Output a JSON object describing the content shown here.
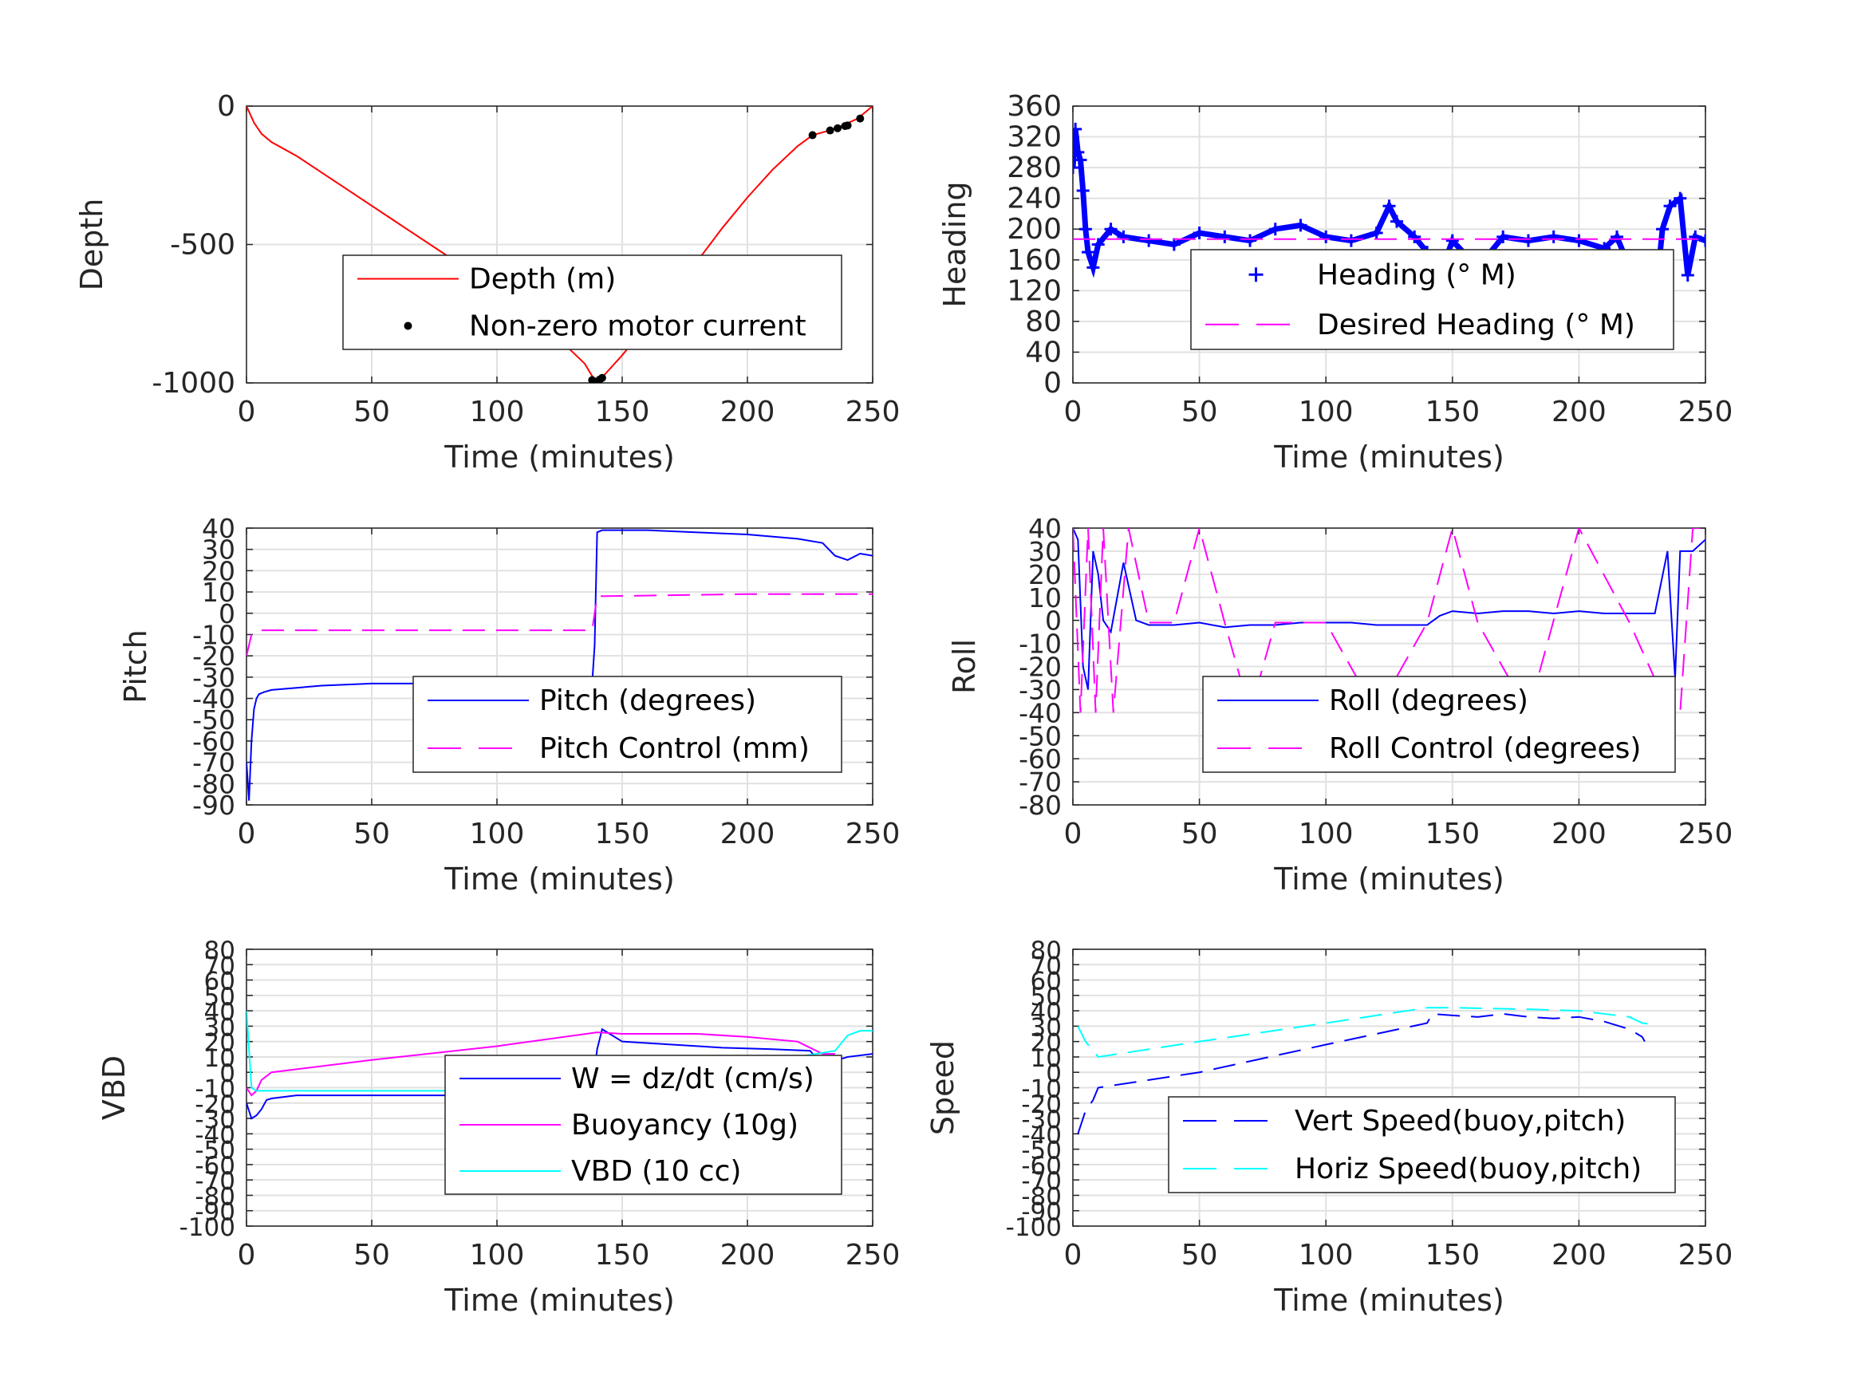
{
  "chart_data": [
    {
      "type": "line",
      "xlabel": "Time (minutes)",
      "ylabel": "Depth",
      "xlim": [
        0,
        250
      ],
      "ylim": [
        -1000,
        0
      ],
      "xticks": [
        "0",
        "50",
        "100",
        "150",
        "200",
        "250"
      ],
      "yticks": [
        "-1000",
        "-500",
        "0"
      ],
      "grid": true,
      "legend_position": "center-right",
      "series": [
        {
          "name": "Depth (m)",
          "color": "#ff0000",
          "style": "solid",
          "x": [
            0,
            3,
            6,
            10,
            20,
            40,
            60,
            80,
            100,
            120,
            135,
            139,
            142,
            150,
            160,
            175,
            190,
            200,
            210,
            220,
            226,
            232,
            238,
            244,
            250
          ],
          "y": [
            0,
            -60,
            -100,
            -130,
            -180,
            -300,
            -420,
            -540,
            -660,
            -800,
            -930,
            -990,
            -980,
            -900,
            -790,
            -620,
            -440,
            -330,
            -230,
            -145,
            -105,
            -90,
            -70,
            -45,
            0
          ]
        },
        {
          "name": "Non-zero motor current",
          "color": "#000000",
          "style": "marker",
          "x": [
            138,
            140,
            141,
            142,
            226,
            233,
            236,
            239,
            240,
            245
          ],
          "y": [
            -990,
            -995,
            -988,
            -982,
            -105,
            -88,
            -80,
            -72,
            -70,
            -45
          ]
        }
      ]
    },
    {
      "type": "line",
      "xlabel": "Time (minutes)",
      "ylabel": "Heading",
      "xlim": [
        0,
        250
      ],
      "ylim": [
        0,
        360
      ],
      "xticks": [
        "0",
        "50",
        "100",
        "150",
        "200",
        "250"
      ],
      "yticks": [
        "0",
        "40",
        "80",
        "120",
        "160",
        "200",
        "240",
        "280",
        "320",
        "360"
      ],
      "grid": true,
      "legend_position": "center-right",
      "series": [
        {
          "name": "Heading (° M)",
          "color": "#0000ff",
          "style": "marker",
          "x": [
            0,
            1,
            2,
            3,
            4,
            5,
            6,
            8,
            10,
            15,
            20,
            30,
            40,
            50,
            60,
            70,
            80,
            90,
            100,
            110,
            120,
            125,
            128,
            135,
            140,
            145,
            150,
            160,
            170,
            180,
            190,
            200,
            210,
            215,
            220,
            225,
            228,
            230,
            233,
            236,
            240,
            243,
            246,
            250
          ],
          "y": [
            280,
            330,
            300,
            290,
            250,
            200,
            170,
            150,
            180,
            200,
            190,
            185,
            180,
            195,
            190,
            185,
            200,
            205,
            190,
            185,
            195,
            230,
            210,
            190,
            170,
            140,
            185,
            150,
            190,
            185,
            190,
            185,
            175,
            190,
            150,
            120,
            60,
            100,
            200,
            230,
            240,
            140,
            190,
            185
          ]
        },
        {
          "name": "Desired Heading (° M)",
          "color": "#ff00ff",
          "style": "dashed",
          "x": [
            0,
            250
          ],
          "y": [
            187,
            187
          ]
        }
      ]
    },
    {
      "type": "line",
      "xlabel": "Time (minutes)",
      "ylabel": "Pitch",
      "xlim": [
        0,
        250
      ],
      "ylim": [
        -90,
        40
      ],
      "xticks": [
        "0",
        "50",
        "100",
        "150",
        "200",
        "250"
      ],
      "yticks": [
        "-90",
        "-80",
        "-70",
        "-60",
        "-50",
        "-40",
        "-30",
        "-20",
        "-10",
        "0",
        "10",
        "20",
        "30",
        "40"
      ],
      "grid": true,
      "legend_position": "center-right",
      "series": [
        {
          "name": "Pitch (degrees)",
          "color": "#0000ff",
          "style": "solid",
          "x": [
            0,
            1,
            2,
            3,
            4,
            5,
            7,
            10,
            20,
            30,
            50,
            70,
            100,
            120,
            138,
            139,
            140,
            142,
            160,
            180,
            200,
            220,
            230,
            235,
            240,
            245,
            250
          ],
          "y": [
            -70,
            -88,
            -60,
            -45,
            -40,
            -38,
            -37,
            -36,
            -35,
            -34,
            -33,
            -33,
            -33,
            -33,
            -33,
            -15,
            38,
            39,
            39,
            38,
            37,
            35,
            33,
            27,
            25,
            28,
            27
          ]
        },
        {
          "name": "Pitch Control (mm)",
          "color": "#ff00ff",
          "style": "dashed",
          "x": [
            0,
            2,
            4,
            10,
            50,
            100,
            138,
            140,
            142,
            200,
            250
          ],
          "y": [
            -20,
            -10,
            -8,
            -8,
            -8,
            -8,
            -8,
            8,
            8,
            9,
            9
          ]
        }
      ]
    },
    {
      "type": "line",
      "xlabel": "Time (minutes)",
      "ylabel": "Roll",
      "xlim": [
        0,
        250
      ],
      "ylim": [
        -80,
        40
      ],
      "xticks": [
        "0",
        "50",
        "100",
        "150",
        "200",
        "250"
      ],
      "yticks": [
        "-80",
        "-70",
        "-60",
        "-50",
        "-40",
        "-30",
        "-20",
        "-10",
        "0",
        "10",
        "20",
        "30",
        "40"
      ],
      "grid": true,
      "legend_position": "center-right",
      "series": [
        {
          "name": "Roll (degrees)",
          "color": "#0000ff",
          "style": "solid",
          "x": [
            0,
            2,
            4,
            6,
            8,
            10,
            12,
            15,
            20,
            25,
            30,
            40,
            50,
            60,
            70,
            80,
            90,
            100,
            110,
            120,
            130,
            140,
            145,
            150,
            160,
            170,
            180,
            190,
            200,
            210,
            220,
            230,
            235,
            238,
            240,
            245,
            250
          ],
          "y": [
            40,
            35,
            -20,
            -30,
            30,
            20,
            0,
            -5,
            25,
            0,
            -2,
            -2,
            -1,
            -3,
            -2,
            -2,
            -1,
            -1,
            -1,
            -2,
            -2,
            -2,
            2,
            4,
            3,
            4,
            4,
            3,
            4,
            3,
            3,
            3,
            30,
            -25,
            30,
            30,
            35
          ]
        },
        {
          "name": "Roll Control (degrees)",
          "color": "#ff00ff",
          "style": "dashed",
          "x": [
            0,
            3,
            6,
            9,
            12,
            16,
            22,
            30,
            40,
            50,
            60,
            70,
            80,
            100,
            120,
            140,
            150,
            160,
            180,
            200,
            220,
            236,
            240,
            245,
            250
          ],
          "y": [
            40,
            -40,
            40,
            -40,
            40,
            -40,
            40,
            -1,
            -1,
            40,
            -1,
            -40,
            -1,
            -1,
            -40,
            -1,
            40,
            -1,
            -40,
            40,
            -1,
            -40,
            -40,
            40,
            40
          ]
        }
      ]
    },
    {
      "type": "line",
      "xlabel": "Time (minutes)",
      "ylabel": "VBD",
      "xlim": [
        0,
        250
      ],
      "ylim": [
        -100,
        80
      ],
      "xticks": [
        "0",
        "50",
        "100",
        "150",
        "200",
        "250"
      ],
      "yticks": [
        "-100",
        "-90",
        "-80",
        "-70",
        "-60",
        "-50",
        "-40",
        "-30",
        "-20",
        "-10",
        "0",
        "10",
        "20",
        "30",
        "40",
        "50",
        "60",
        "70",
        "80"
      ],
      "grid": true,
      "legend_position": "center-right",
      "series": [
        {
          "name": "W = dz/dt (cm/s)",
          "color": "#0000ff",
          "style": "solid",
          "x": [
            0,
            2,
            4,
            6,
            8,
            10,
            20,
            50,
            80,
            110,
            125,
            135,
            138,
            140,
            142,
            145,
            150,
            170,
            190,
            210,
            225,
            230,
            240,
            250
          ],
          "y": [
            -20,
            -30,
            -28,
            -24,
            -18,
            -17,
            -15,
            -15,
            -15,
            -17,
            -16,
            -14,
            -12,
            15,
            28,
            25,
            20,
            18,
            16,
            15,
            14,
            5,
            10,
            12
          ]
        },
        {
          "name": "Buoyancy (10g)",
          "color": "#ff00ff",
          "style": "solid",
          "x": [
            0,
            2,
            4,
            6,
            10,
            50,
            100,
            140,
            150,
            180,
            200,
            220,
            230,
            235
          ],
          "y": [
            -10,
            -15,
            -12,
            -5,
            0,
            8,
            17,
            26,
            25,
            25,
            23,
            20,
            12,
            12
          ]
        },
        {
          "name": "VBD (10 cc)",
          "color": "#00ffff",
          "style": "solid",
          "x": [
            0,
            2,
            4,
            6,
            10,
            50,
            100,
            138,
            140,
            142,
            180,
            200,
            220,
            235,
            240,
            245,
            250
          ],
          "y": [
            40,
            -10,
            -12,
            -12,
            -12,
            -12,
            -12,
            -12,
            10,
            10,
            10,
            10,
            10,
            14,
            24,
            27,
            27
          ]
        }
      ]
    },
    {
      "type": "line",
      "xlabel": "Time (minutes)",
      "ylabel": "Speed",
      "xlim": [
        0,
        250
      ],
      "ylim": [
        -100,
        80
      ],
      "xticks": [
        "0",
        "50",
        "100",
        "150",
        "200",
        "250"
      ],
      "yticks": [
        "-100",
        "-90",
        "-80",
        "-70",
        "-60",
        "-50",
        "-40",
        "-30",
        "-20",
        "-10",
        "0",
        "10",
        "20",
        "30",
        "40",
        "50",
        "60",
        "70",
        "80"
      ],
      "grid": true,
      "legend_position": "center-right",
      "series": [
        {
          "name": "Vert Speed(buoy,pitch)",
          "color": "#0000ff",
          "style": "dashed",
          "x": [
            2,
            5,
            8,
            10,
            50,
            100,
            140,
            142,
            150,
            160,
            170,
            180,
            190,
            200,
            210,
            220,
            225,
            226
          ],
          "y": [
            -40,
            -25,
            -18,
            -10,
            0,
            18,
            32,
            38,
            37,
            36,
            38,
            36,
            35,
            36,
            33,
            28,
            23,
            20
          ]
        },
        {
          "name": "Horiz Speed(buoy,pitch)",
          "color": "#00ffff",
          "style": "dashed",
          "x": [
            2,
            5,
            10,
            50,
            100,
            140,
            150,
            180,
            200,
            220,
            225,
            230
          ],
          "y": [
            30,
            20,
            10,
            20,
            32,
            42,
            42,
            41,
            40,
            36,
            32,
            31
          ]
        }
      ]
    }
  ]
}
